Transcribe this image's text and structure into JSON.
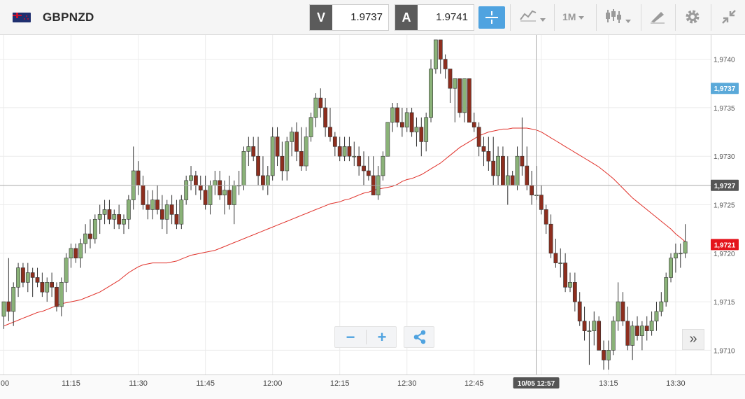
{
  "toolbar": {
    "symbol": "GBPNZD",
    "bid_label": "V",
    "bid_value": "1.9737",
    "ask_label": "A",
    "ask_value": "1.9741",
    "timeframe": "1M",
    "icons": [
      "flag-gbp-nzd-icon",
      "crosshair-icon",
      "chart-type-icon",
      "candlestick-icon",
      "drawing-tool-icon",
      "gear-icon",
      "collapse-icon"
    ]
  },
  "chart_data": {
    "type": "candlestick",
    "symbol": "GBPNZD",
    "timeframe": "1M",
    "x_ticks": [
      ":00",
      "11:15",
      "11:30",
      "11:45",
      "12:00",
      "12:15",
      "12:30",
      "12:45",
      "13:00",
      "13:15",
      "13:30"
    ],
    "y_ticks": [
      "1,9710",
      "1,9715",
      "1,9720",
      "1,9725",
      "1,9730",
      "1,9735",
      "1,9740"
    ],
    "ylim": [
      1.97075,
      1.97425
    ],
    "price_tags": [
      {
        "label": "1,9737",
        "value": 1.9737,
        "color": "#5aa9d9",
        "role": "bid"
      },
      {
        "label": "1,9727",
        "value": 1.9727,
        "color": "#555555",
        "role": "crosshair"
      },
      {
        "label": "1,9721",
        "value": 1.97209,
        "color": "#e4141c",
        "role": "last"
      }
    ],
    "crosshair": {
      "time_label": "10/05 12:57",
      "price": 1.9727
    },
    "colors": {
      "up": "#8ab278",
      "down": "#8e2e1e",
      "ma": "#e0312a",
      "grid": "#ececec"
    },
    "candles": [
      [
        1.97135,
        1.9715,
        1.97122,
        1.9715
      ],
      [
        1.9715,
        1.97195,
        1.9713,
        1.9714
      ],
      [
        1.9714,
        1.9717,
        1.97125,
        1.97165
      ],
      [
        1.97165,
        1.9719,
        1.97155,
        1.97185
      ],
      [
        1.97185,
        1.9719,
        1.97165,
        1.9717
      ],
      [
        1.9717,
        1.9719,
        1.9716,
        1.9718
      ],
      [
        1.9718,
        1.97185,
        1.97155,
        1.97175
      ],
      [
        1.97175,
        1.97185,
        1.97165,
        1.9717
      ],
      [
        1.9717,
        1.9718,
        1.97155,
        1.9716
      ],
      [
        1.9716,
        1.97175,
        1.9715,
        1.9717
      ],
      [
        1.9717,
        1.9718,
        1.97155,
        1.97165
      ],
      [
        1.97165,
        1.9717,
        1.9714,
        1.97145
      ],
      [
        1.97145,
        1.97175,
        1.97135,
        1.9717
      ],
      [
        1.9717,
        1.972,
        1.9716,
        1.97195
      ],
      [
        1.97195,
        1.9721,
        1.97185,
        1.97205
      ],
      [
        1.97205,
        1.9721,
        1.9719,
        1.97195
      ],
      [
        1.97195,
        1.97215,
        1.97185,
        1.9721
      ],
      [
        1.9721,
        1.9723,
        1.972,
        1.9722
      ],
      [
        1.9722,
        1.97235,
        1.97205,
        1.97215
      ],
      [
        1.97215,
        1.9724,
        1.9721,
        1.97235
      ],
      [
        1.97235,
        1.9725,
        1.9722,
        1.9724
      ],
      [
        1.9724,
        1.97255,
        1.9723,
        1.97245
      ],
      [
        1.97245,
        1.97255,
        1.9723,
        1.97235
      ],
      [
        1.97235,
        1.97245,
        1.97225,
        1.9724
      ],
      [
        1.9724,
        1.9725,
        1.97225,
        1.9723
      ],
      [
        1.9723,
        1.9724,
        1.9722,
        1.97235
      ],
      [
        1.97235,
        1.9726,
        1.97225,
        1.97255
      ],
      [
        1.97255,
        1.9731,
        1.97245,
        1.97285
      ],
      [
        1.97285,
        1.97295,
        1.9726,
        1.9727
      ],
      [
        1.9727,
        1.9728,
        1.97245,
        1.9725
      ],
      [
        1.9725,
        1.97265,
        1.97235,
        1.97245
      ],
      [
        1.97245,
        1.97265,
        1.97235,
        1.97255
      ],
      [
        1.97255,
        1.9727,
        1.9724,
        1.97245
      ],
      [
        1.97245,
        1.9726,
        1.97225,
        1.97235
      ],
      [
        1.97235,
        1.97255,
        1.9722,
        1.9725
      ],
      [
        1.9725,
        1.9726,
        1.9723,
        1.9724
      ],
      [
        1.9724,
        1.97255,
        1.97225,
        1.9723
      ],
      [
        1.9723,
        1.9726,
        1.97225,
        1.97255
      ],
      [
        1.97255,
        1.9728,
        1.9725,
        1.97275
      ],
      [
        1.97275,
        1.9729,
        1.97265,
        1.9728
      ],
      [
        1.9728,
        1.97285,
        1.9726,
        1.9727
      ],
      [
        1.9727,
        1.9728,
        1.97255,
        1.97265
      ],
      [
        1.97265,
        1.9728,
        1.97245,
        1.9725
      ],
      [
        1.9725,
        1.97275,
        1.9724,
        1.9727
      ],
      [
        1.9727,
        1.97285,
        1.9726,
        1.97275
      ],
      [
        1.97275,
        1.97285,
        1.97255,
        1.9726
      ],
      [
        1.9726,
        1.97275,
        1.9724,
        1.97265
      ],
      [
        1.97265,
        1.9728,
        1.97245,
        1.9725
      ],
      [
        1.9725,
        1.97275,
        1.9723,
        1.9727
      ],
      [
        1.9727,
        1.97285,
        1.9726,
        1.9727
      ],
      [
        1.9727,
        1.9731,
        1.97265,
        1.97305
      ],
      [
        1.97305,
        1.9732,
        1.9729,
        1.9731
      ],
      [
        1.9731,
        1.9732,
        1.97295,
        1.973
      ],
      [
        1.973,
        1.9732,
        1.9727,
        1.9728
      ],
      [
        1.9728,
        1.973,
        1.97265,
        1.9727
      ],
      [
        1.9727,
        1.9729,
        1.9726,
        1.9728
      ],
      [
        1.9728,
        1.9733,
        1.97275,
        1.9732
      ],
      [
        1.9732,
        1.9733,
        1.9729,
        1.973
      ],
      [
        1.973,
        1.97315,
        1.97275,
        1.97285
      ],
      [
        1.97285,
        1.9732,
        1.97275,
        1.97315
      ],
      [
        1.97315,
        1.9733,
        1.973,
        1.97325
      ],
      [
        1.97325,
        1.97335,
        1.97295,
        1.97305
      ],
      [
        1.97305,
        1.9733,
        1.97285,
        1.9729
      ],
      [
        1.9729,
        1.9733,
        1.97285,
        1.9732
      ],
      [
        1.9732,
        1.97345,
        1.97315,
        1.9734
      ],
      [
        1.9734,
        1.97365,
        1.9733,
        1.9736
      ],
      [
        1.9736,
        1.9737,
        1.9734,
        1.9735
      ],
      [
        1.9735,
        1.9736,
        1.9732,
        1.9733
      ],
      [
        1.9733,
        1.9735,
        1.97315,
        1.9732
      ],
      [
        1.9732,
        1.97325,
        1.973,
        1.9731
      ],
      [
        1.9731,
        1.9732,
        1.97295,
        1.973
      ],
      [
        1.973,
        1.9732,
        1.97295,
        1.9731
      ],
      [
        1.9731,
        1.9732,
        1.97295,
        1.973
      ],
      [
        1.973,
        1.97315,
        1.9729,
        1.973
      ],
      [
        1.973,
        1.9731,
        1.9728,
        1.9729
      ],
      [
        1.9729,
        1.97305,
        1.9727,
        1.97285
      ],
      [
        1.97285,
        1.973,
        1.97275,
        1.9728
      ],
      [
        1.9728,
        1.973,
        1.9726,
        1.9726
      ],
      [
        1.9726,
        1.9729,
        1.97255,
        1.9728
      ],
      [
        1.9728,
        1.97305,
        1.97275,
        1.973
      ],
      [
        1.973,
        1.97335,
        1.973,
        1.97335
      ],
      [
        1.97335,
        1.97355,
        1.97325,
        1.9735
      ],
      [
        1.9735,
        1.97355,
        1.9733,
        1.97335
      ],
      [
        1.97335,
        1.9735,
        1.9732,
        1.9733
      ],
      [
        1.9733,
        1.9735,
        1.97325,
        1.97345
      ],
      [
        1.97345,
        1.9735,
        1.9732,
        1.97325
      ],
      [
        1.97325,
        1.9734,
        1.9731,
        1.9733
      ],
      [
        1.9733,
        1.9734,
        1.973,
        1.97315
      ],
      [
        1.97315,
        1.97345,
        1.97305,
        1.9734
      ],
      [
        1.9734,
        1.974,
        1.97335,
        1.9739
      ],
      [
        1.9739,
        1.9742,
        1.97385,
        1.9742
      ],
      [
        1.9742,
        1.9742,
        1.97385,
        1.974
      ],
      [
        1.974,
        1.97405,
        1.9738,
        1.9739
      ],
      [
        1.9739,
        1.9739,
        1.97355,
        1.9737
      ],
      [
        1.9737,
        1.9738,
        1.97335,
        1.9738
      ],
      [
        1.9738,
        1.9738,
        1.9734,
        1.97345
      ],
      [
        1.97345,
        1.9738,
        1.97335,
        1.9738
      ],
      [
        1.9738,
        1.9738,
        1.97335,
        1.97335
      ],
      [
        1.97335,
        1.97345,
        1.97325,
        1.9733
      ],
      [
        1.9733,
        1.97335,
        1.973,
        1.9731
      ],
      [
        1.9731,
        1.9732,
        1.9729,
        1.97305
      ],
      [
        1.97305,
        1.9732,
        1.97285,
        1.97295
      ],
      [
        1.97295,
        1.9732,
        1.9727,
        1.9728
      ],
      [
        1.9728,
        1.9731,
        1.9727,
        1.973
      ],
      [
        1.973,
        1.9731,
        1.9727,
        1.9727
      ],
      [
        1.9727,
        1.973,
        1.9725,
        1.9728
      ],
      [
        1.9728,
        1.97285,
        1.9727,
        1.9727
      ],
      [
        1.9727,
        1.9731,
        1.97265,
        1.973
      ],
      [
        1.973,
        1.9734,
        1.9728,
        1.9729
      ],
      [
        1.9729,
        1.9731,
        1.97265,
        1.9727
      ],
      [
        1.9727,
        1.97285,
        1.9725,
        1.9726
      ],
      [
        1.9726,
        1.9729,
        1.97255,
        1.9726
      ],
      [
        1.9726,
        1.9727,
        1.9724,
        1.97245
      ],
      [
        1.97245,
        1.9725,
        1.9722,
        1.9723
      ],
      [
        1.9723,
        1.9724,
        1.97195,
        1.972
      ],
      [
        1.972,
        1.97215,
        1.97185,
        1.9719
      ],
      [
        1.9719,
        1.97205,
        1.97175,
        1.9719
      ],
      [
        1.9719,
        1.972,
        1.9716,
        1.97165
      ],
      [
        1.97165,
        1.9718,
        1.9716,
        1.9717
      ],
      [
        1.9717,
        1.9718,
        1.9714,
        1.9715
      ],
      [
        1.9715,
        1.9716,
        1.97125,
        1.9713
      ],
      [
        1.9713,
        1.97145,
        1.9711,
        1.9712
      ],
      [
        1.9712,
        1.9713,
        1.97085,
        1.9712
      ],
      [
        1.9712,
        1.9714,
        1.97105,
        1.9713
      ],
      [
        1.9713,
        1.97135,
        1.971,
        1.971
      ],
      [
        1.971,
        1.9711,
        1.9708,
        1.9709
      ],
      [
        1.9709,
        1.9711,
        1.9708,
        1.971
      ],
      [
        1.971,
        1.97135,
        1.97095,
        1.9713
      ],
      [
        1.9713,
        1.9717,
        1.9712,
        1.9715
      ],
      [
        1.9715,
        1.9716,
        1.97125,
        1.9713
      ],
      [
        1.9713,
        1.97145,
        1.971,
        1.97105
      ],
      [
        1.97105,
        1.9713,
        1.9709,
        1.97125
      ],
      [
        1.97125,
        1.97135,
        1.9711,
        1.97115
      ],
      [
        1.97115,
        1.9713,
        1.971,
        1.97125
      ],
      [
        1.97125,
        1.97135,
        1.9711,
        1.9712
      ],
      [
        1.9712,
        1.9714,
        1.97115,
        1.9713
      ],
      [
        1.9713,
        1.9715,
        1.9712,
        1.9714
      ],
      [
        1.9714,
        1.9716,
        1.97135,
        1.9715
      ],
      [
        1.9715,
        1.9718,
        1.97145,
        1.97175
      ],
      [
        1.97175,
        1.972,
        1.9717,
        1.97195
      ],
      [
        1.97195,
        1.9721,
        1.9718,
        1.972
      ],
      [
        1.972,
        1.9721,
        1.97185,
        1.972
      ],
      [
        1.972,
        1.9723,
        1.97195,
        1.97212
      ]
    ],
    "moving_average": [
      1.97125,
      1.97127,
      1.97129,
      1.97131,
      1.97133,
      1.97135,
      1.97137,
      1.97139,
      1.9714,
      1.97142,
      1.97144,
      1.97146,
      1.97148,
      1.97149,
      1.9715,
      1.97151,
      1.97152,
      1.97154,
      1.97156,
      1.97158,
      1.9716,
      1.97163,
      1.97166,
      1.97169,
      1.97172,
      1.97176,
      1.9718,
      1.97183,
      1.97186,
      1.97188,
      1.97189,
      1.9719,
      1.9719,
      1.9719,
      1.9719,
      1.97191,
      1.97192,
      1.97194,
      1.97196,
      1.97198,
      1.97199,
      1.972,
      1.97201,
      1.97202,
      1.97203,
      1.97205,
      1.97207,
      1.97209,
      1.97211,
      1.97213,
      1.97215,
      1.97217,
      1.97219,
      1.97221,
      1.97223,
      1.97225,
      1.97227,
      1.97229,
      1.97231,
      1.97233,
      1.97235,
      1.97237,
      1.97239,
      1.97241,
      1.97243,
      1.97245,
      1.97247,
      1.97249,
      1.97251,
      1.97252,
      1.97253,
      1.97255,
      1.97256,
      1.97258,
      1.9726,
      1.97262,
      1.97263,
      1.97265,
      1.97266,
      1.97267,
      1.97268,
      1.97269,
      1.97271,
      1.97274,
      1.97276,
      1.97277,
      1.97279,
      1.97281,
      1.97284,
      1.97287,
      1.9729,
      1.97293,
      1.97297,
      1.97301,
      1.97305,
      1.97309,
      1.97312,
      1.97315,
      1.97318,
      1.97321,
      1.97323,
      1.97325,
      1.97326,
      1.97327,
      1.97328,
      1.97328,
      1.97329,
      1.97329,
      1.97329,
      1.97329,
      1.97328,
      1.97327,
      1.97325,
      1.97322,
      1.97319,
      1.97316,
      1.97313,
      1.9731,
      1.97307,
      1.97304,
      1.97301,
      1.97298,
      1.97295,
      1.97292,
      1.97289,
      1.97285,
      1.97281,
      1.97277,
      1.97272,
      1.97267,
      1.97262,
      1.97257,
      1.97253,
      1.97249,
      1.97245,
      1.97241,
      1.97237,
      1.97233,
      1.97229,
      1.97225,
      1.9722,
      1.97216,
      1.97212
    ]
  }
}
